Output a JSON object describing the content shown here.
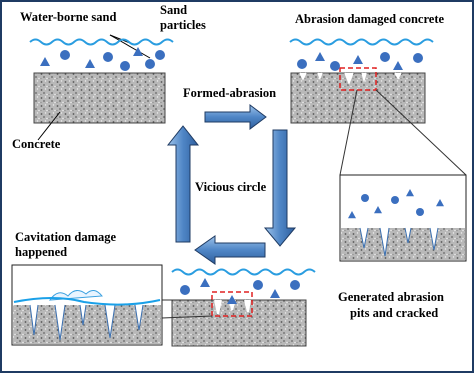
{
  "labels": {
    "water_borne_sand": "Water-borne sand",
    "sand_particles": [
      "Sand",
      "particles"
    ],
    "concrete": "Concrete",
    "formed_abrasion": "Formed-abrasion",
    "abrasion_damaged_concrete": "Abrasion damaged concrete",
    "vicious_circle": "Vicious circle",
    "cavitation_damage": [
      "Cavitation damage",
      "happened"
    ],
    "generated_abrasion": [
      "Generated abrasion",
      "pits and cracked"
    ]
  }
}
